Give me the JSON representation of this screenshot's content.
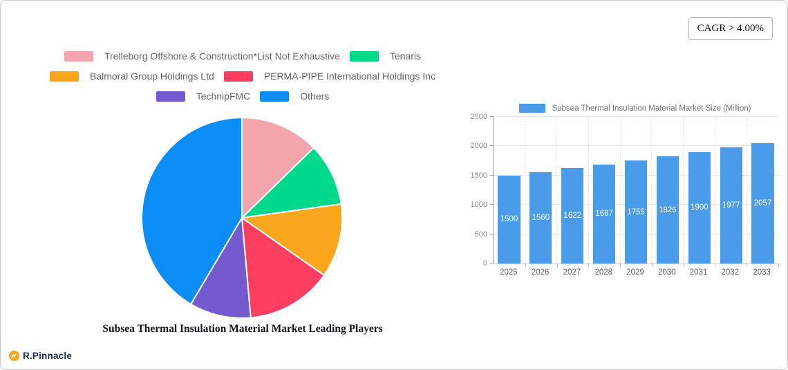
{
  "header": {
    "cagr_label": "CAGR > 4.00%"
  },
  "branding": {
    "name": "R.Pinnacle",
    "icon": "rpinnacle-monogram-icon",
    "icon_color": "#F9A720",
    "text_color": "#1C2B4A"
  },
  "chart_data": [
    {
      "type": "pie",
      "title": "Subsea Thermal Insulation Material Market Leading Players",
      "legend_position": "top",
      "start_angle": "12-oclock-clockwise",
      "unit": "percent share (estimated from arc angles)",
      "slices": [
        {
          "id": "trelleborg",
          "label": "Trelleborg Offshore & Construction*List Not Exhaustive",
          "value": 12.7,
          "color": "#F3A5AE"
        },
        {
          "id": "tenaris",
          "label": "Tenaris",
          "value": 10.1,
          "color": "#00D98A"
        },
        {
          "id": "balmoral",
          "label": "Balmoral Group Holdings Ltd",
          "value": 11.9,
          "color": "#FBA71E"
        },
        {
          "id": "perma-pipe",
          "label": "PERMA-PIPE International Holdings Inc",
          "value": 13.9,
          "color": "#FC3F61"
        },
        {
          "id": "technipfmc",
          "label": "TechnipFMC",
          "value": 9.9,
          "color": "#7559CE"
        },
        {
          "id": "others",
          "label": "Others",
          "value": 41.5,
          "color": "#0A8DF7"
        }
      ]
    },
    {
      "type": "bar",
      "legend": "Subsea Thermal Insulation Material Market Size (Million)",
      "bar_color": "#4A9CEB",
      "categories": [
        "2025",
        "2026",
        "2027",
        "2028",
        "2029",
        "2030",
        "2031",
        "2032",
        "2033"
      ],
      "values": [
        1500,
        1560,
        1622,
        1687,
        1755,
        1826,
        1900,
        1977,
        2057
      ],
      "ylim": [
        0,
        2500
      ],
      "yticks": [
        0,
        500,
        1000,
        1500,
        2000,
        2500
      ],
      "grid": true,
      "value_labels": "inside-bars-white-centered"
    }
  ]
}
